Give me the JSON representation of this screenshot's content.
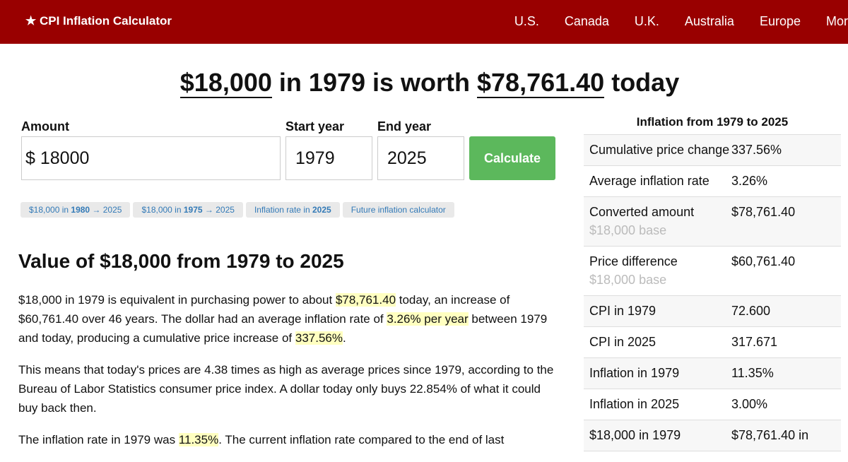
{
  "nav": {
    "brand": "★ CPI Inflation Calculator",
    "links": [
      "U.S.",
      "Canada",
      "U.K.",
      "Australia",
      "Europe",
      "More"
    ]
  },
  "headline": [
    {
      "text": "$18,000",
      "underline": true
    },
    {
      "text": " in 1979 is worth ",
      "underline": false
    },
    {
      "text": "$78,761.40",
      "underline": true
    },
    {
      "text": " today",
      "underline": false
    }
  ],
  "form": {
    "amount_label": "Amount",
    "currency": "$",
    "amount": "18000",
    "start_label": "Start year",
    "start": "1979",
    "end_label": "End year",
    "end": "2025",
    "button": "Calculate"
  },
  "chips": [
    [
      {
        "text": "$18,000 in ",
        "bold": false
      },
      {
        "text": "1980",
        "bold": true
      },
      {
        "text": " → 2025",
        "bold": false
      }
    ],
    [
      {
        "text": "$18,000 in ",
        "bold": false
      },
      {
        "text": "1975",
        "bold": true
      },
      {
        "text": " → 2025",
        "bold": false
      }
    ],
    [
      {
        "text": "Inflation rate in ",
        "bold": false
      },
      {
        "text": "2025",
        "bold": true
      }
    ],
    [
      {
        "text": "Future inflation calculator",
        "bold": false
      }
    ]
  ],
  "heading": "Value of $18,000 from 1979 to 2025",
  "paragraphs": [
    [
      {
        "text": "$18,000 in 1979 is equivalent in purchasing power to about ",
        "hl": false
      },
      {
        "text": "$78,761.40",
        "hl": true
      },
      {
        "text": " today, an increase of $60,761.40 over 46 years. The dollar had an average inflation rate of ",
        "hl": false
      },
      {
        "text": "3.26% per year",
        "hl": true
      },
      {
        "text": " between 1979 and today, producing a cumulative price increase of ",
        "hl": false
      },
      {
        "text": "337.56%",
        "hl": true
      },
      {
        "text": ".",
        "hl": false
      }
    ],
    [
      {
        "text": "This means that today's prices are 4.38 times as high as average prices since 1979, according to the Bureau of Labor Statistics consumer price index. A dollar today only buys 22.854% of what it could buy back then.",
        "hl": false
      }
    ],
    [
      {
        "text": "The inflation rate in 1979 was ",
        "hl": false
      },
      {
        "text": "11.35%",
        "hl": true
      },
      {
        "text": ". The current inflation rate compared to the end of last",
        "hl": false
      }
    ]
  ],
  "sidebar": {
    "title": "Inflation from 1979 to 2025",
    "rows": [
      {
        "label": "Cumulative price change",
        "value": "337.56%"
      },
      {
        "label": "Average inflation rate",
        "value": "3.26%"
      },
      {
        "label": "Converted amount",
        "note": "$18,000 base",
        "value": "$78,761.40"
      },
      {
        "label": "Price difference",
        "note": "$18,000 base",
        "value": "$60,761.40"
      },
      {
        "label": "CPI in 1979",
        "value": "72.600"
      },
      {
        "label": "CPI in 2025",
        "value": "317.671"
      },
      {
        "label": "Inflation in 1979",
        "value": "11.35%"
      },
      {
        "label": "Inflation in 2025",
        "value": "3.00%"
      },
      {
        "label": "$18,000 in 1979",
        "value": "$78,761.40 in"
      }
    ]
  }
}
